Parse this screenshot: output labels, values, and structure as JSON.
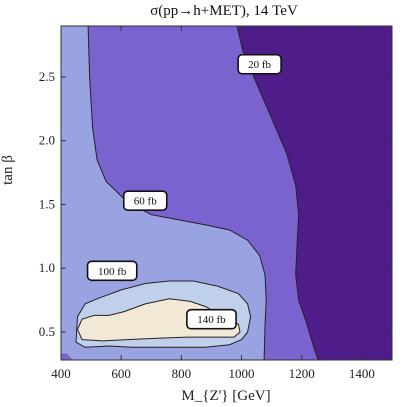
{
  "chart_data": {
    "type": "contour",
    "title": "σ(pp→h+MET), 14 TeV",
    "xlabel": "M_{Z'} [GeV]",
    "ylabel": "tan β",
    "xlim": [
      400,
      1500
    ],
    "ylim": [
      0.28,
      2.9
    ],
    "x_ticks": [
      400,
      600,
      800,
      1000,
      1200,
      1400
    ],
    "x_tick_labels": [
      "400",
      "600",
      "800",
      "1000",
      "1200",
      "1400"
    ],
    "y_ticks": [
      0.5,
      1.0,
      1.5,
      2.0,
      2.5
    ],
    "y_tick_labels": [
      "0.5",
      "1.0",
      "1.5",
      "2.0",
      "2.5"
    ],
    "levels": [
      {
        "label": "140 fb",
        "value_fb": 140,
        "color": "#f2e8d6"
      },
      {
        "label": "100 fb",
        "value_fb": 100,
        "color": "#c0d0ea"
      },
      {
        "label": "60 fb",
        "value_fb": 60,
        "color": "#9aa3e2"
      },
      {
        "label": "20 fb",
        "value_fb": 20,
        "color": "#7a62cf"
      }
    ],
    "region_colors": {
      "above_140": "#f2e8d6",
      "100_to_140": "#c0d0ea",
      "60_to_100": "#9aa3e2",
      "20_to_60": "#7a62cf",
      "below_20": "#4e1d8a"
    },
    "contours": [
      {
        "level": "20 fb",
        "points": [
          [
            985,
            2.9
          ],
          [
            1005,
            2.7
          ],
          [
            1050,
            2.45
          ],
          [
            1105,
            2.15
          ],
          [
            1150,
            1.9
          ],
          [
            1180,
            1.65
          ],
          [
            1190,
            1.42
          ],
          [
            1185,
            1.2
          ],
          [
            1180,
            0.95
          ],
          [
            1190,
            0.75
          ],
          [
            1215,
            0.58
          ],
          [
            1240,
            0.38
          ],
          [
            1255,
            0.28
          ]
        ]
      },
      {
        "level": "60 fb",
        "points": [
          [
            490,
            2.9
          ],
          [
            495,
            2.5
          ],
          [
            505,
            2.1
          ],
          [
            520,
            1.85
          ],
          [
            550,
            1.68
          ],
          [
            620,
            1.52
          ],
          [
            700,
            1.42
          ],
          [
            790,
            1.38
          ],
          [
            880,
            1.34
          ],
          [
            960,
            1.3
          ],
          [
            1020,
            1.22
          ],
          [
            1060,
            1.1
          ],
          [
            1078,
            0.95
          ],
          [
            1082,
            0.75
          ],
          [
            1078,
            0.55
          ],
          [
            1075,
            0.28
          ]
        ]
      },
      {
        "level": "100 fb",
        "points": [
          [
            450,
            0.42
          ],
          [
            455,
            0.62
          ],
          [
            480,
            0.72
          ],
          [
            520,
            0.76
          ],
          [
            600,
            0.83
          ],
          [
            680,
            0.88
          ],
          [
            760,
            0.9
          ],
          [
            840,
            0.9
          ],
          [
            920,
            0.86
          ],
          [
            990,
            0.8
          ],
          [
            1020,
            0.72
          ],
          [
            1030,
            0.62
          ],
          [
            1020,
            0.5
          ],
          [
            1000,
            0.44
          ],
          [
            960,
            0.4
          ],
          [
            880,
            0.38
          ],
          [
            760,
            0.38
          ],
          [
            640,
            0.38
          ],
          [
            560,
            0.39
          ],
          [
            480,
            0.38
          ],
          [
            450,
            0.42
          ]
        ]
      },
      {
        "level": "140 fb",
        "points": [
          [
            455,
            0.52
          ],
          [
            470,
            0.6
          ],
          [
            510,
            0.63
          ],
          [
            560,
            0.63
          ],
          [
            610,
            0.66
          ],
          [
            680,
            0.72
          ],
          [
            760,
            0.76
          ],
          [
            830,
            0.74
          ],
          [
            880,
            0.7
          ],
          [
            940,
            0.62
          ],
          [
            990,
            0.56
          ],
          [
            995,
            0.5
          ],
          [
            975,
            0.46
          ],
          [
            900,
            0.46
          ],
          [
            820,
            0.46
          ],
          [
            720,
            0.45
          ],
          [
            620,
            0.44
          ],
          [
            540,
            0.43
          ],
          [
            470,
            0.44
          ],
          [
            455,
            0.52
          ]
        ]
      }
    ],
    "contour_labels": [
      {
        "text": "20 fb",
        "x": 1060,
        "y": 2.6
      },
      {
        "text": "60 fb",
        "x": 680,
        "y": 1.53
      },
      {
        "text": "100 fb",
        "x": 570,
        "y": 0.98
      },
      {
        "text": "140 fb",
        "x": 900,
        "y": 0.6
      }
    ],
    "grid": false,
    "legend": "none"
  }
}
